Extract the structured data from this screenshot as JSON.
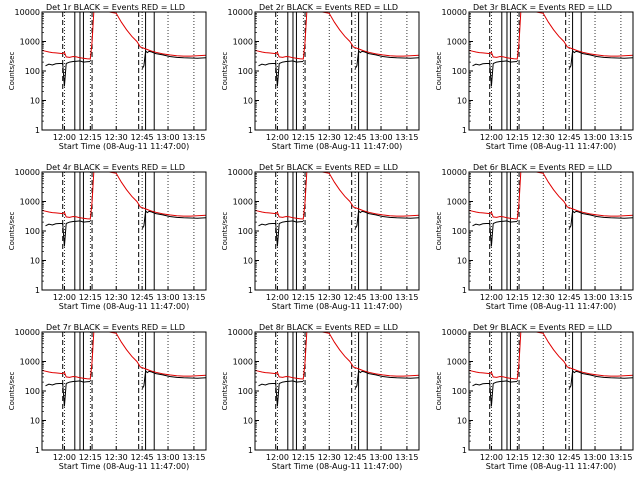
{
  "figure": {
    "subtitle": "Start Time (08-Aug-11 11:47:00)",
    "ylabel": "Counts/sec"
  },
  "colors": {
    "events": "#000000",
    "lld": "#e00000",
    "axis": "#000000"
  },
  "chart_data": [
    {
      "title": "Det 1r BLACK = Events RED = LLD"
    },
    {
      "title": "Det 2r BLACK = Events RED = LLD"
    },
    {
      "title": "Det 3r BLACK = Events RED = LLD"
    },
    {
      "title": "Det 4r BLACK = Events RED = LLD"
    },
    {
      "title": "Det 5r BLACK = Events RED = LLD"
    },
    {
      "title": "Det 6r BLACK = Events RED = LLD"
    },
    {
      "title": "Det 7r BLACK = Events RED = LLD"
    },
    {
      "title": "Det 8r BLACK = Events RED = LLD"
    },
    {
      "title": "Det 9r BLACK = Events RED = LLD"
    }
  ],
  "shared_chart": {
    "type": "line",
    "ylog": true,
    "ylim": [
      1,
      10000
    ],
    "xlim": [
      "11:47",
      "13:22"
    ],
    "x_ticks": [
      "12:00",
      "12:15",
      "12:30",
      "12:45",
      "13:00",
      "13:15"
    ],
    "y_ticks": [
      "1",
      "10",
      "100",
      "1000",
      "10000"
    ],
    "vlines_dotted": [
      "12:00",
      "12:15",
      "12:30",
      "12:45",
      "13:00",
      "13:15"
    ],
    "vlines_dashed": [
      "11:59",
      "12:16",
      "12:43"
    ],
    "vlines_solid": [
      "12:06",
      "12:09",
      "12:11",
      "12:47",
      "12:52"
    ],
    "series": [
      {
        "name": "LLD",
        "color": "#e00000",
        "x": [
          "11:47",
          "11:49",
          "11:51",
          "11:53",
          "11:55",
          "11:57",
          "11:59",
          "12:00",
          "12:01",
          "12:03",
          "12:05",
          "12:07",
          "12:09",
          "12:11",
          "12:13",
          "12:15",
          "12:16",
          "12:17",
          "12:18",
          "12:20",
          "12:23",
          "12:26",
          "12:30",
          "12:33",
          "12:36",
          "12:39",
          "12:42",
          "12:44",
          "12:47",
          "12:50",
          "12:53",
          "12:57",
          "13:01",
          "13:05",
          "13:09",
          "13:13",
          "13:17",
          "13:22"
        ],
        "y": [
          500,
          470,
          440,
          420,
          410,
          400,
          390,
          430,
          300,
          290,
          310,
          300,
          280,
          270,
          260,
          255,
          1000,
          10000,
          10000,
          10000,
          10000,
          10000,
          9000,
          4500,
          2500,
          1500,
          1000,
          650,
          560,
          480,
          430,
          380,
          350,
          330,
          320,
          320,
          330,
          340
        ]
      },
      {
        "name": "Events",
        "color": "#000000",
        "x": [
          "11:47",
          "11:49",
          "11:51",
          "11:53",
          "11:55",
          "11:57",
          "11:59",
          "12:00",
          "12:01",
          "12:03",
          "12:05",
          "12:07",
          "12:09",
          "12:11",
          "12:13",
          "12:15",
          "12:16",
          "12:44",
          "12:45",
          "12:46",
          "12:47",
          "12:48",
          "12:49",
          "12:50",
          "12:53",
          "12:57",
          "13:01",
          "13:05",
          "13:09",
          "13:13",
          "13:17",
          "13:22"
        ],
        "y": [
          null,
          150,
          170,
          160,
          175,
          180,
          180,
          30,
          180,
          200,
          210,
          215,
          220,
          200,
          205,
          210,
          null,
          null,
          120,
          150,
          480,
          420,
          460,
          450,
          390,
          350,
          310,
          290,
          280,
          275,
          270,
          280
        ]
      }
    ]
  }
}
